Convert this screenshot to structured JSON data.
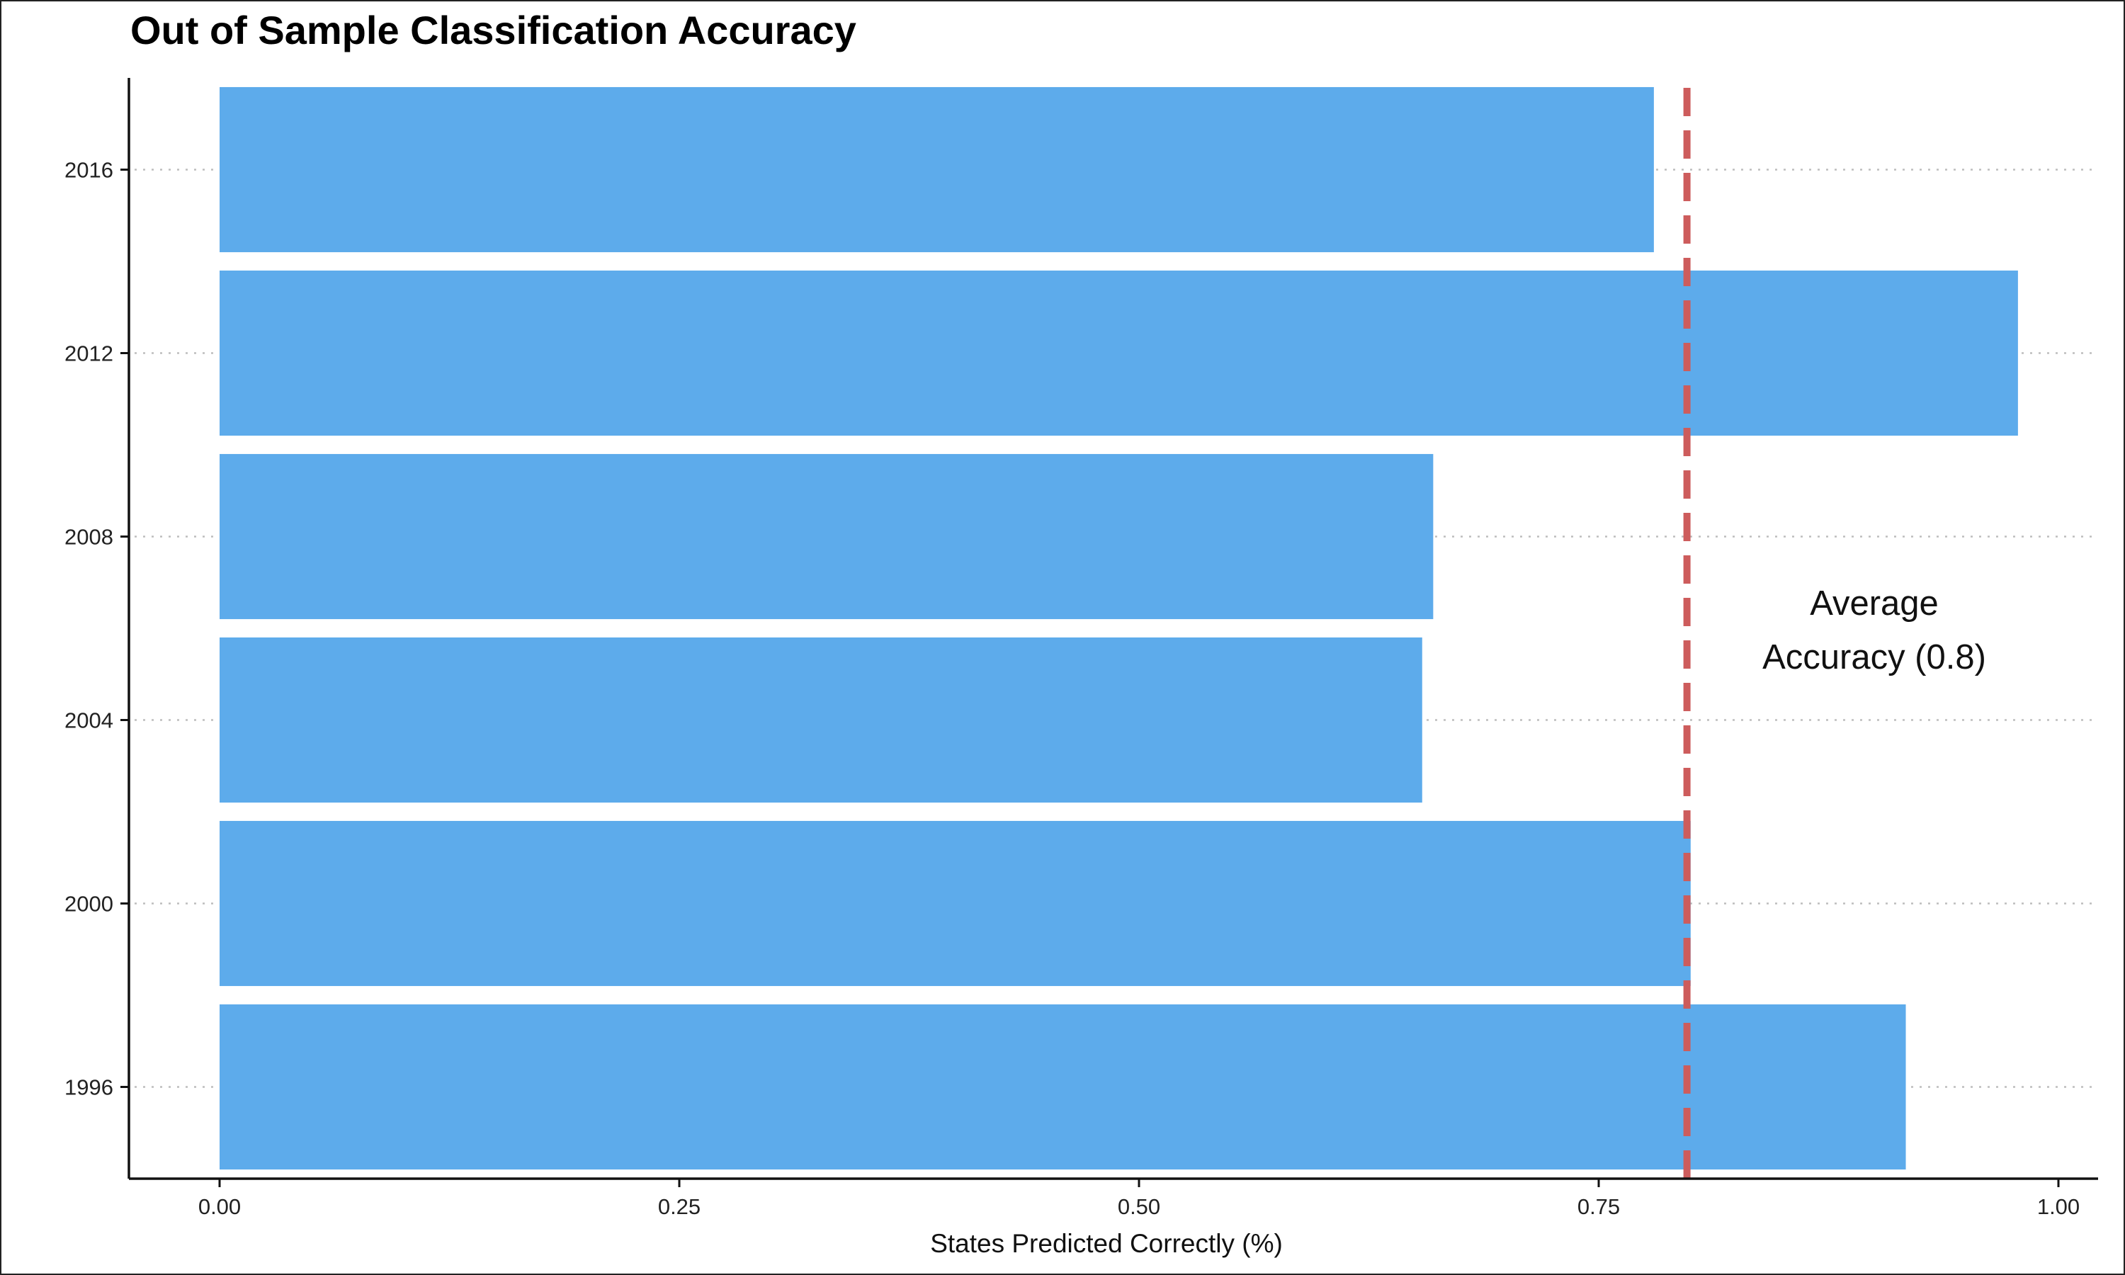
{
  "chart_data": {
    "type": "bar",
    "orientation": "horizontal",
    "title": "Out of Sample Classification Accuracy",
    "xlabel": "States Predicted Correctly (%)",
    "ylabel": "",
    "categories": [
      "1996",
      "2000",
      "2004",
      "2008",
      "2012",
      "2016"
    ],
    "values": [
      0.917,
      0.8,
      0.654,
      0.66,
      0.978,
      0.78
    ],
    "xlim": [
      -0.05,
      1.02
    ],
    "xticks": [
      0.0,
      0.25,
      0.5,
      0.75,
      1.0
    ],
    "xtick_labels": [
      "0.00",
      "0.25",
      "0.50",
      "0.75",
      "1.00"
    ],
    "bar_color": "#5dabeb",
    "grid": "dotted horizontal gridlines at each category",
    "reference_line": {
      "value": 0.798,
      "style": "dashed",
      "color": "#cd5c5c",
      "label_lines": [
        "Average",
        "Accuracy (0.8)"
      ]
    }
  }
}
